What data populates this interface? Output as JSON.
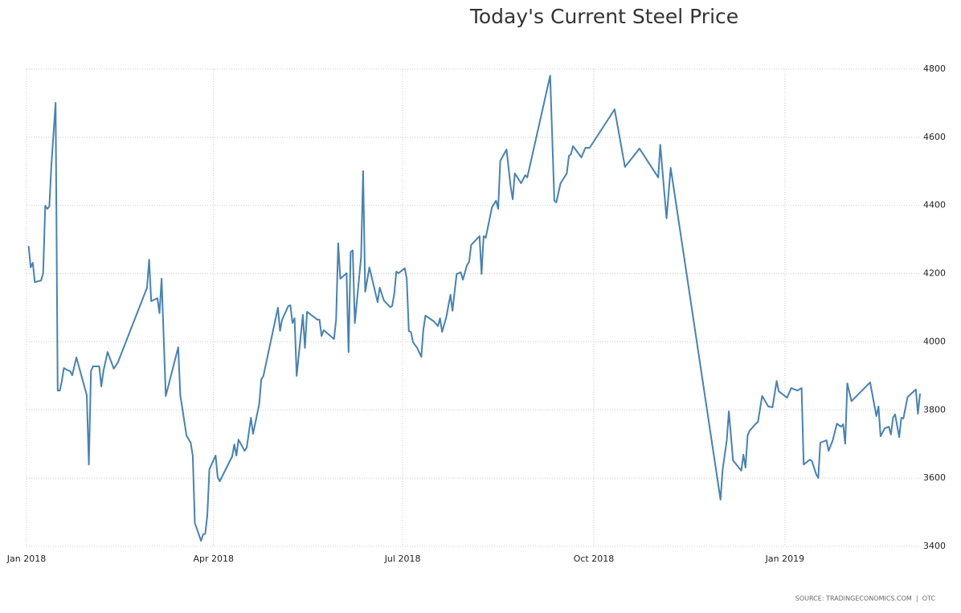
{
  "chart_data": {
    "type": "line",
    "title": "Today's Current Steel Price",
    "source": "SOURCE: TRADINGECONOMICS.COM  |  OTC",
    "color": "#4682b4",
    "grid": true,
    "xlim": [
      0,
      430
    ],
    "xticks": [
      {
        "value": 0,
        "label": "Jan 2018"
      },
      {
        "value": 90,
        "label": "Apr 2018"
      },
      {
        "value": 181,
        "label": "Jul 2018"
      },
      {
        "value": 273,
        "label": "Oct 2018"
      },
      {
        "value": 365,
        "label": "Jan 2019"
      }
    ],
    "ylim": [
      3400,
      4800
    ],
    "yticks": [
      3400,
      3600,
      3800,
      4000,
      4200,
      4400,
      4600,
      4800
    ],
    "x": [
      1,
      2,
      3,
      4,
      7,
      8,
      9,
      10,
      11,
      12,
      14,
      15,
      16,
      17,
      18,
      20,
      21,
      22,
      24,
      29,
      30,
      31,
      32,
      35,
      36,
      37,
      39,
      42,
      44,
      58,
      59,
      60,
      63,
      64,
      65,
      67,
      73,
      74,
      77,
      79,
      80,
      81,
      84,
      85,
      86,
      87,
      88,
      91,
      92,
      93,
      99,
      100,
      101,
      102,
      105,
      106,
      108,
      109,
      112,
      113,
      114,
      121,
      122,
      123,
      126,
      127,
      128,
      129,
      130,
      133,
      134,
      135,
      140,
      141,
      142,
      143,
      148,
      149,
      150,
      151,
      154,
      155,
      156,
      157,
      158,
      161,
      162,
      163,
      165,
      169,
      170,
      172,
      175,
      176,
      177,
      178,
      179,
      182,
      183,
      184,
      185,
      186,
      188,
      190,
      191,
      192,
      196,
      198,
      199,
      200,
      202,
      204,
      205,
      207,
      209,
      210,
      212,
      213,
      214,
      218,
      219,
      220,
      221,
      224,
      226,
      227,
      228,
      231,
      233,
      234,
      235,
      238,
      240,
      241,
      252,
      254,
      255,
      257,
      260,
      261,
      262,
      263,
      267,
      269,
      271,
      283,
      288,
      295,
      304,
      305,
      308,
      310,
      334,
      335,
      337,
      338,
      340,
      344,
      345,
      346,
      347,
      348,
      351,
      352,
      354,
      357,
      359,
      361,
      362,
      366,
      368,
      371,
      373,
      374,
      377,
      378,
      380,
      381,
      382,
      385,
      386,
      388,
      390,
      392,
      393,
      394,
      395,
      397,
      406,
      409,
      410,
      411,
      413,
      415,
      416,
      417,
      418,
      420,
      421,
      422,
      424,
      428,
      429,
      430
    ],
    "values": [
      4281,
      4218,
      4232,
      4175,
      4180,
      4201,
      4399,
      4390,
      4397,
      4520,
      4701,
      3857,
      3857,
      3885,
      3923,
      3916,
      3914,
      3902,
      3954,
      3843,
      3640,
      3914,
      3928,
      3928,
      3869,
      3914,
      3970,
      3921,
      3940,
      4159,
      4241,
      4119,
      4128,
      4084,
      4185,
      3841,
      3984,
      3843,
      3725,
      3704,
      3666,
      3468,
      3416,
      3435,
      3437,
      3490,
      3626,
      3666,
      3603,
      3591,
      3664,
      3699,
      3666,
      3713,
      3680,
      3690,
      3777,
      3730,
      3817,
      3890,
      3900,
      4100,
      4032,
      4065,
      4105,
      4107,
      4055,
      4069,
      3900,
      4079,
      3982,
      4088,
      4065,
      4065,
      4017,
      4034,
      4008,
      4065,
      4289,
      4185,
      4201,
      3970,
      4263,
      4268,
      4055,
      4249,
      4501,
      4147,
      4218,
      4116,
      4159,
      4121,
      4102,
      4105,
      4142,
      4206,
      4201,
      4216,
      4185,
      4032,
      4029,
      3999,
      3982,
      3956,
      4036,
      4077,
      4060,
      4046,
      4069,
      4029,
      4072,
      4138,
      4091,
      4199,
      4204,
      4182,
      4225,
      4234,
      4284,
      4310,
      4199,
      4310,
      4305,
      4395,
      4414,
      4390,
      4531,
      4564,
      4456,
      4418,
      4494,
      4465,
      4489,
      4482,
      4781,
      4414,
      4409,
      4465,
      4494,
      4545,
      4550,
      4574,
      4541,
      4569,
      4569,
      4682,
      4513,
      4567,
      4482,
      4578,
      4362,
      4510,
      3537,
      3624,
      3711,
      3796,
      3652,
      3622,
      3669,
      3631,
      3725,
      3739,
      3760,
      3765,
      3841,
      3810,
      3808,
      3885,
      3855,
      3836,
      3864,
      3857,
      3864,
      3640,
      3654,
      3650,
      3612,
      3600,
      3704,
      3711,
      3680,
      3711,
      3760,
      3751,
      3758,
      3701,
      3878,
      3826,
      3881,
      3782,
      3810,
      3723,
      3746,
      3751,
      3728,
      3777,
      3787,
      3720,
      3777,
      3775,
      3838,
      3860,
      3789,
      3848
    ]
  }
}
